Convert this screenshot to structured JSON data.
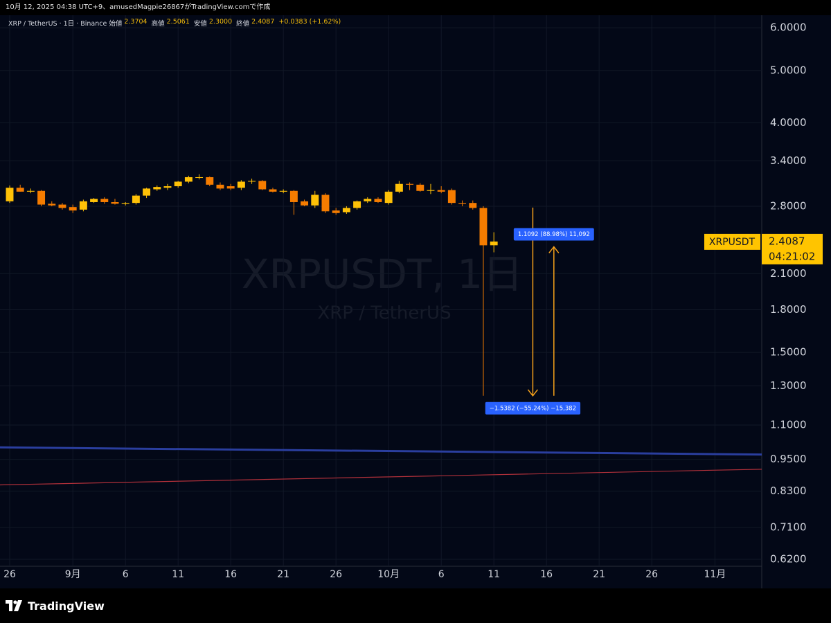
{
  "header": {
    "caption": "10月 12, 2025 04:38 UTC+9、amusedMagpie26867がTradingView.comで作成"
  },
  "chart_data": {
    "type": "candlestick",
    "legend": {
      "symbol": "XRP / TetherUS · 1日 · Binance",
      "items": [
        {
          "label": "始値",
          "value": "2.3704"
        },
        {
          "label": "高値",
          "value": "2.5061"
        },
        {
          "label": "安値",
          "value": "2.3000"
        },
        {
          "label": "終値",
          "value": "2.4087"
        }
      ],
      "change": "+0.0383 (+1.62%)"
    },
    "watermark": {
      "title": "XRPUSDT, 1日",
      "subtitle": "XRP / TetherUS"
    },
    "log_scale": true,
    "grid": true,
    "up_color": "#ffc107",
    "down_color": "#f57c00",
    "ylim": [
      0.602,
      6.33
    ],
    "yticks": [
      {
        "value": 6,
        "label": "6.0000"
      },
      {
        "value": 5,
        "label": "5.0000"
      },
      {
        "value": 4,
        "label": "4.0000"
      },
      {
        "value": 3.4,
        "label": "3.4000"
      },
      {
        "value": 2.8,
        "label": "2.8000"
      },
      {
        "value": 2.1,
        "label": "2.1000"
      },
      {
        "value": 1.8,
        "label": "1.8000"
      },
      {
        "value": 1.5,
        "label": "1.5000"
      },
      {
        "value": 1.3,
        "label": "1.3000"
      },
      {
        "value": 1.1,
        "label": "1.1000"
      },
      {
        "value": 0.95,
        "label": "0.9500"
      },
      {
        "value": 0.83,
        "label": "0.8300"
      },
      {
        "value": 0.71,
        "label": "0.7100"
      },
      {
        "value": 0.62,
        "label": "0.6200"
      }
    ],
    "xlim": [
      -0.92,
      71.45
    ],
    "xticks": [
      {
        "value": 0,
        "label": "26"
      },
      {
        "value": 6,
        "label": "9月"
      },
      {
        "value": 11,
        "label": "6"
      },
      {
        "value": 16,
        "label": "11"
      },
      {
        "value": 21,
        "label": "16"
      },
      {
        "value": 26,
        "label": "21"
      },
      {
        "value": 31,
        "label": "26"
      },
      {
        "value": 36,
        "label": "10月"
      },
      {
        "value": 41,
        "label": "6"
      },
      {
        "value": 46,
        "label": "11"
      },
      {
        "value": 51,
        "label": "16"
      },
      {
        "value": 56,
        "label": "21"
      },
      {
        "value": 61,
        "label": "26"
      },
      {
        "value": 67,
        "label": "11月"
      }
    ],
    "candles": {
      "x": [
        0,
        1,
        2,
        3,
        4,
        5,
        6,
        7,
        8,
        9,
        10,
        11,
        12,
        13,
        14,
        15,
        16,
        17,
        18,
        19,
        20,
        21,
        22,
        23,
        24,
        25,
        26,
        27,
        28,
        29,
        30,
        31,
        32,
        33,
        34,
        35,
        36,
        37,
        38,
        39,
        40,
        41,
        42,
        43,
        44,
        45,
        46
      ],
      "open": [
        2.86,
        3.03,
        2.98,
        2.99,
        2.83,
        2.82,
        2.79,
        2.76,
        2.85,
        2.89,
        2.85,
        2.83,
        2.84,
        2.93,
        3.01,
        3.03,
        3.05,
        3.11,
        3.16,
        3.17,
        3.07,
        3.05,
        3.03,
        3.11,
        3.12,
        3.01,
        2.98,
        2.99,
        2.86,
        2.81,
        2.94,
        2.75,
        2.73,
        2.78,
        2.86,
        2.89,
        2.84,
        2.98,
        3.08,
        3.07,
        2.99,
        3.0,
        3.0,
        2.84,
        2.84,
        2.78,
        2.3704
      ],
      "high": [
        3.06,
        3.07,
        3.02,
        3.0,
        2.86,
        2.84,
        2.82,
        2.88,
        2.9,
        2.91,
        2.89,
        2.85,
        2.95,
        3.03,
        3.06,
        3.08,
        3.12,
        3.19,
        3.21,
        3.18,
        3.1,
        3.08,
        3.13,
        3.15,
        3.13,
        3.03,
        3.01,
        3.0,
        2.88,
        2.99,
        2.96,
        2.78,
        2.8,
        2.87,
        2.91,
        2.91,
        3.0,
        3.12,
        3.1,
        3.09,
        3.08,
        3.05,
        3.02,
        2.87,
        2.87,
        2.8,
        2.5061
      ],
      "low": [
        2.84,
        2.98,
        2.96,
        2.8,
        2.8,
        2.76,
        2.72,
        2.74,
        2.84,
        2.83,
        2.82,
        2.81,
        2.82,
        2.9,
        2.99,
        3.0,
        3.03,
        3.09,
        3.14,
        3.05,
        3.0,
        3.0,
        3.0,
        3.08,
        3.0,
        2.97,
        2.96,
        2.7,
        2.8,
        2.78,
        2.72,
        2.7,
        2.71,
        2.76,
        2.84,
        2.84,
        2.82,
        2.96,
        3.0,
        2.98,
        2.95,
        2.96,
        2.82,
        2.8,
        2.76,
        1.2463,
        2.3
      ],
      "close": [
        3.03,
        2.98,
        2.99,
        2.82,
        2.81,
        2.78,
        2.75,
        2.86,
        2.89,
        2.85,
        2.83,
        2.84,
        2.93,
        3.02,
        3.04,
        3.05,
        3.11,
        3.17,
        3.17,
        3.07,
        3.02,
        3.02,
        3.11,
        3.12,
        3.01,
        2.98,
        2.99,
        2.85,
        2.81,
        2.94,
        2.74,
        2.72,
        2.78,
        2.86,
        2.89,
        2.85,
        2.98,
        3.08,
        3.07,
        2.99,
        3.0,
        2.98,
        2.84,
        2.83,
        2.78,
        2.37,
        2.4087
      ]
    },
    "lines": [
      {
        "color": "#2a3e9e",
        "x": [
          -0.92,
          71.45
        ],
        "values": [
          1.0,
          0.97
        ]
      },
      {
        "color": "#b0303a",
        "x": [
          -0.92,
          71.45
        ],
        "values": [
          0.852,
          0.911
        ]
      }
    ],
    "measures": [
      {
        "text": "−1.5382 (−55.24%) −15,382",
        "x": 49.7,
        "from": 2.7845,
        "to": 1.2463
      },
      {
        "text": "1.1092 (88.98%) 11,092",
        "x": 51.7,
        "from": 1.2463,
        "to": 2.3555
      }
    ],
    "price_label": {
      "symbol": "XRPUSDT",
      "price": 2.4087,
      "price_text": "2.4087",
      "countdown": "04:21:02"
    }
  },
  "footer": {
    "brand": "TradingView"
  }
}
